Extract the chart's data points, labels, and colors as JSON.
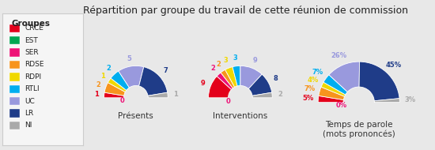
{
  "title": "Répartition par groupe du travail de cette réunion de commission",
  "groups": [
    "CRCE",
    "EST",
    "SER",
    "RDSE",
    "RDPI",
    "RTLI",
    "UC",
    "LR",
    "NI"
  ],
  "colors": [
    "#e3001b",
    "#00a651",
    "#ee1177",
    "#f7941d",
    "#f0d800",
    "#00aeef",
    "#9999dd",
    "#1f3c88",
    "#aaaaaa"
  ],
  "presences": [
    1,
    0,
    0,
    2,
    1,
    2,
    5,
    7,
    1
  ],
  "interventions": [
    9,
    0,
    2,
    2,
    3,
    3,
    9,
    8,
    2
  ],
  "temps": [
    5,
    0,
    0,
    7,
    4,
    7,
    26,
    45,
    3
  ],
  "temps_labels_text": [
    "5%",
    "",
    "",
    "7%",
    "4%",
    "7%",
    "26%",
    "45%",
    "3%"
  ],
  "background_color": "#e8e8e8",
  "legend_bg": "#f5f5f5",
  "subtitle1": "Présents",
  "subtitle2": "Interventions",
  "subtitle3": "Temps de parole\n(mots prononcés)"
}
